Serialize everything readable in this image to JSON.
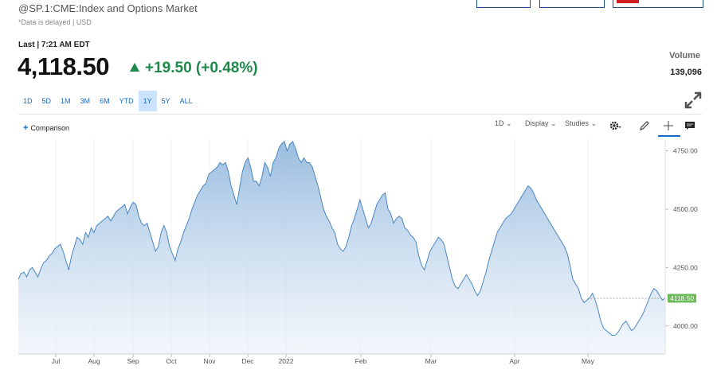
{
  "header": {
    "title": "@SP.1:CME:Index and Options Market",
    "delayed_note": "*Data is delayed | USD",
    "last_label": "Last | 7:21 AM EDT",
    "price": "4,118.50",
    "change": "+19.50 (+0.48%)",
    "volume_label": "Volume",
    "volume_value": "139,096"
  },
  "ranges": [
    "1D",
    "5D",
    "1M",
    "3M",
    "6M",
    "YTD",
    "1Y",
    "5Y",
    "ALL"
  ],
  "active_range": "1Y",
  "toolbar": {
    "comparison": "Comparison",
    "interval": "1D",
    "display": "Display",
    "studies": "Studies"
  },
  "colors": {
    "accent": "#1b6ac2",
    "positive": "#1d8a4a",
    "line": "#4a86c2",
    "price_tag": "#6fb95d"
  },
  "icons": [
    "up-triangle-icon",
    "expand-icon",
    "gear-icon",
    "pencil-icon",
    "crosshair-icon",
    "comment-icon"
  ],
  "chart_data": {
    "type": "area",
    "x_tick_labels": [
      "Jul",
      "Aug",
      "Sep",
      "Oct",
      "Nov",
      "Dec",
      "2022",
      "Feb",
      "Mar",
      "Apr",
      "May"
    ],
    "y_tick_labels": [
      "4750.00",
      "4500.00",
      "4250.00",
      "4000.00"
    ],
    "y_ticks": [
      4750,
      4500,
      4250,
      4000
    ],
    "ylim": [
      3880,
      4800
    ],
    "current_value": 4118.5,
    "current_label": "4118.50",
    "series": [
      {
        "values": [
          4200,
          4225,
          4230,
          4210,
          4240,
          4250,
          4230,
          4210,
          4245,
          4270,
          4280,
          4300,
          4310,
          4330,
          4340,
          4350,
          4320,
          4280,
          4240,
          4300,
          4340,
          4380,
          4370,
          4350,
          4400,
          4380,
          4420,
          4400,
          4430,
          4440,
          4450,
          4460,
          4470,
          4450,
          4470,
          4490,
          4500,
          4510,
          4520,
          4480,
          4510,
          4530,
          4520,
          4470,
          4440,
          4430,
          4440,
          4400,
          4360,
          4320,
          4340,
          4400,
          4430,
          4400,
          4340,
          4310,
          4280,
          4330,
          4360,
          4400,
          4430,
          4460,
          4500,
          4530,
          4560,
          4580,
          4600,
          4610,
          4650,
          4660,
          4670,
          4680,
          4700,
          4690,
          4700,
          4660,
          4600,
          4560,
          4520,
          4590,
          4660,
          4700,
          4720,
          4680,
          4620,
          4620,
          4600,
          4640,
          4700,
          4680,
          4640,
          4700,
          4720,
          4760,
          4780,
          4790,
          4750,
          4780,
          4790,
          4760,
          4720,
          4700,
          4720,
          4700,
          4700,
          4680,
          4640,
          4600,
          4550,
          4500,
          4470,
          4450,
          4420,
          4400,
          4350,
          4330,
          4320,
          4340,
          4380,
          4430,
          4460,
          4500,
          4540,
          4500,
          4460,
          4420,
          4440,
          4480,
          4520,
          4540,
          4560,
          4570,
          4500,
          4480,
          4440,
          4460,
          4470,
          4460,
          4420,
          4410,
          4390,
          4380,
          4360,
          4300,
          4260,
          4240,
          4280,
          4320,
          4340,
          4360,
          4380,
          4370,
          4350,
          4300,
          4250,
          4200,
          4170,
          4160,
          4180,
          4200,
          4220,
          4200,
          4180,
          4150,
          4130,
          4150,
          4190,
          4230,
          4280,
          4320,
          4360,
          4400,
          4420,
          4440,
          4460,
          4470,
          4480,
          4500,
          4520,
          4540,
          4560,
          4580,
          4600,
          4590,
          4570,
          4540,
          4520,
          4500,
          4480,
          4460,
          4440,
          4420,
          4400,
          4380,
          4360,
          4340,
          4310,
          4260,
          4200,
          4180,
          4160,
          4120,
          4100,
          4110,
          4120,
          4140,
          4110,
          4070,
          4020,
          3990,
          3980,
          3970,
          3960,
          3960,
          3970,
          3990,
          4010,
          4020,
          4000,
          3980,
          3990,
          4010,
          4030,
          4050,
          4080,
          4110,
          4140,
          4160,
          4150,
          4130,
          4110,
          4120
        ]
      }
    ]
  }
}
